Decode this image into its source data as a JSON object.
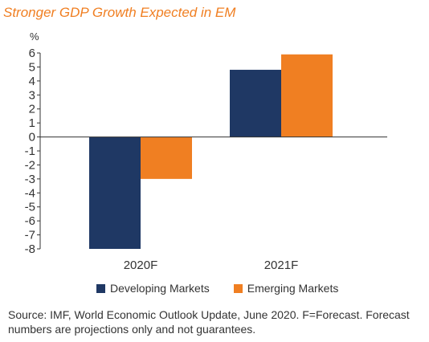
{
  "chart_data": {
    "type": "bar",
    "title": "Stronger GDP Growth Expected in EM",
    "unit_label": "%",
    "categories": [
      "2020F",
      "2021F"
    ],
    "series": [
      {
        "name": "Developing Markets",
        "color": "#1f3864",
        "values": [
          -8.0,
          4.8
        ]
      },
      {
        "name": "Emerging Markets",
        "color": "#f07f22",
        "values": [
          -3.0,
          5.9
        ]
      }
    ],
    "ylim": [
      -8,
      6
    ],
    "yticks": [
      6,
      5,
      4,
      3,
      2,
      1,
      0,
      -1,
      -2,
      -3,
      -4,
      -5,
      -6,
      -7,
      -8
    ],
    "grid": false,
    "legend_position": "bottom"
  },
  "source_note": "Source: IMF, World Economic Outlook Update, June 2020. F=Forecast. Forecast numbers are projections only and not guarantees."
}
